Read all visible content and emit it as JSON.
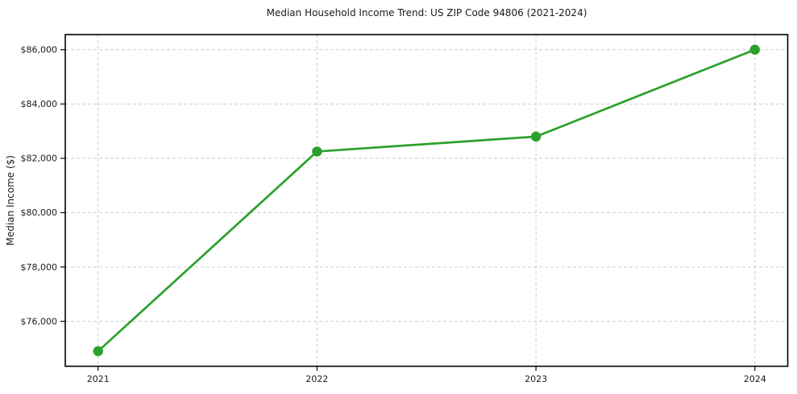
{
  "chart_data": {
    "type": "line",
    "title": "Median Household Income Trend: US ZIP Code 94806 (2021-2024)",
    "xlabel": "",
    "ylabel": "Median Income ($)",
    "x": [
      2021,
      2022,
      2023,
      2024
    ],
    "x_tick_labels": [
      "2021",
      "2022",
      "2023",
      "2024"
    ],
    "series": [
      {
        "name": "Median Household Income",
        "values": [
          74900,
          82250,
          82800,
          86000
        ]
      }
    ],
    "y_ticks": [
      76000,
      78000,
      80000,
      82000,
      84000,
      86000
    ],
    "y_tick_labels": [
      "$76,000",
      "$78,000",
      "$80,000",
      "$82,000",
      "$84,000",
      "$86,000"
    ],
    "xlim": [
      2020.85,
      2024.15
    ],
    "ylim": [
      74345,
      86555
    ],
    "grid": true,
    "grid_linestyle": "dashed",
    "legend_position": "none",
    "colors": {
      "line": "#2ca02c",
      "marker": "#2ca02c",
      "grid": "#c9c9c9",
      "spine": "#000000",
      "text": "#1a1a1a",
      "background": "#ffffff"
    }
  }
}
